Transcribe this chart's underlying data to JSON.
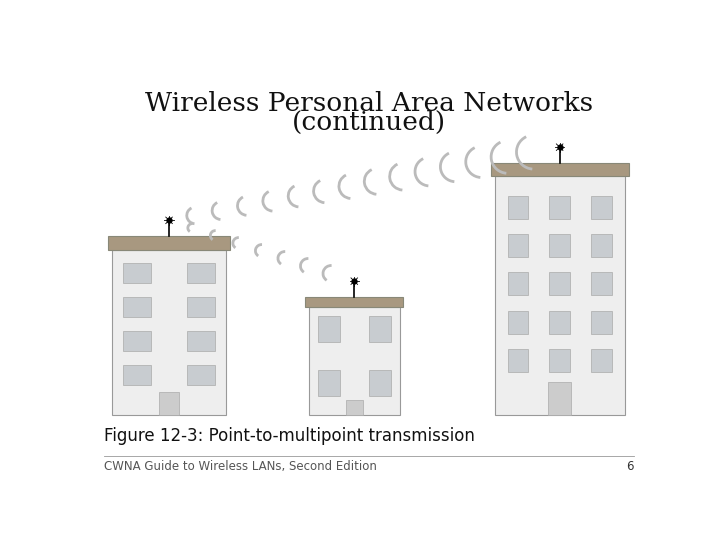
{
  "title_line1": "Wireless Personal Area Networks",
  "title_line2": "(continued)",
  "title_fontsize": 19,
  "caption": "Figure 12-3: Point-to-multipoint transmission",
  "caption_fontsize": 12,
  "footer": "CWNA Guide to Wireless LANs, Second Edition",
  "footer_fontsize": 8.5,
  "page_number": "6",
  "bg_color": "#ffffff",
  "building_fill": "#eeeeee",
  "building_edge": "#999999",
  "roof_fill": "#a89880",
  "roof_edge": "#888878",
  "window_fill": "#c8ccd0",
  "window_edge": "#aaaaaa",
  "door_fill": "#cccccc",
  "signal_color": "#bbbbbb",
  "signal_lw": 2.0
}
